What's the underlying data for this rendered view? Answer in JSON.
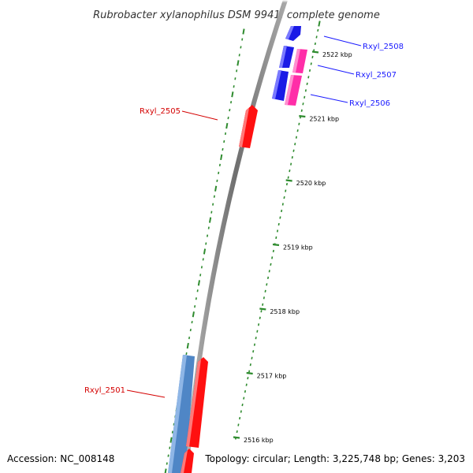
{
  "title": "Rubrobacter xylanophilus DSM 9941, complete genome",
  "footer": {
    "accession": "Accession: NC_008148",
    "summary": "Topology: circular; Length: 3,225,748 bp; Genes: 3,203"
  },
  "colors": {
    "backbone": "#8c8c8c",
    "tick": "#2e8b2e",
    "gene_red": "#ff1010",
    "gene_blue": "#1a1ae6",
    "gene_pink": "#ff2ea8",
    "gene_steel": "#4f86c6",
    "label_red": "#d40000",
    "label_blue": "#1a1aff"
  },
  "scale": {
    "ticks": [
      {
        "kbp": 2516,
        "label": "2516 kbp"
      },
      {
        "kbp": 2517,
        "label": "2517 kbp"
      },
      {
        "kbp": 2518,
        "label": "2518 kbp"
      },
      {
        "kbp": 2519,
        "label": "2519 kbp"
      },
      {
        "kbp": 2520,
        "label": "2520 kbp"
      },
      {
        "kbp": 2521,
        "label": "2521 kbp"
      },
      {
        "kbp": 2522,
        "label": "2522 kbp"
      }
    ]
  },
  "genes": [
    {
      "label": "Rxyl_2508",
      "color": "gene_blue",
      "label_color": "label_blue",
      "side": "right"
    },
    {
      "label": "Rxyl_2507",
      "color": "gene_blue",
      "label_color": "label_blue",
      "side": "right"
    },
    {
      "label": "Rxyl_2506",
      "color": "gene_blue",
      "label_color": "label_blue",
      "side": "right"
    },
    {
      "label": "Rxyl_2505",
      "color": "gene_red",
      "label_color": "label_red",
      "side": "left"
    },
    {
      "label": "Rxyl_2501",
      "color": "gene_red",
      "label_color": "label_red",
      "side": "left"
    }
  ]
}
